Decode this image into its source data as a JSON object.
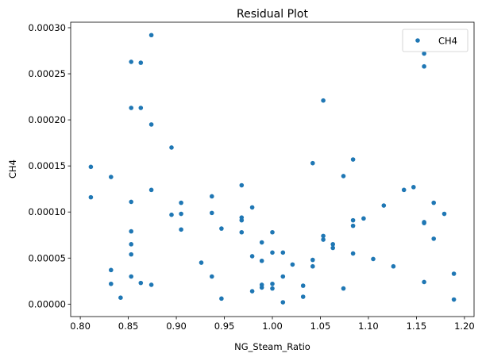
{
  "chart_data": {
    "type": "scatter",
    "title": "Residual Plot",
    "xlabel": "NG_Steam_Ratio",
    "ylabel": "CH4",
    "xlim": [
      0.79,
      1.21
    ],
    "ylim": [
      -1.35e-05,
      0.000306
    ],
    "xticks": [
      0.8,
      0.85,
      0.9,
      0.95,
      1.0,
      1.05,
      1.1,
      1.15,
      1.2
    ],
    "xtick_labels": [
      "0.80",
      "0.85",
      "0.90",
      "0.95",
      "1.00",
      "1.05",
      "1.10",
      "1.15",
      "1.20"
    ],
    "yticks": [
      0,
      5e-05,
      0.0001,
      0.00015,
      0.0002,
      0.00025,
      0.0003
    ],
    "ytick_labels": [
      "0.00000",
      "0.00005",
      "0.00010",
      "0.00015",
      "0.00020",
      "0.00025",
      "0.00030"
    ],
    "grid": false,
    "legend_position": "top-right",
    "series": [
      {
        "name": "CH4",
        "color": "#1f77b4",
        "x": [
          0.811,
          0.811,
          0.832,
          0.832,
          0.832,
          0.842,
          0.853,
          0.853,
          0.853,
          0.853,
          0.853,
          0.853,
          0.853,
          0.863,
          0.863,
          0.863,
          0.874,
          0.874,
          0.874,
          0.874,
          0.895,
          0.895,
          0.905,
          0.905,
          0.905,
          0.926,
          0.937,
          0.937,
          0.937,
          0.947,
          0.947,
          0.968,
          0.968,
          0.968,
          0.968,
          0.979,
          0.979,
          0.979,
          0.989,
          0.989,
          0.989,
          0.989,
          1.0,
          1.0,
          1.0,
          1.0,
          1.011,
          1.011,
          1.011,
          1.021,
          1.032,
          1.032,
          1.042,
          1.042,
          1.042,
          1.053,
          1.053,
          1.053,
          1.063,
          1.063,
          1.074,
          1.074,
          1.084,
          1.084,
          1.084,
          1.084,
          1.095,
          1.105,
          1.116,
          1.126,
          1.137,
          1.147,
          1.158,
          1.158,
          1.158,
          1.158,
          1.158,
          1.168,
          1.168,
          1.179,
          1.189,
          1.189
        ],
        "y": [
          0.000149,
          0.000116,
          0.000138,
          3.7e-05,
          2.2e-05,
          7e-06,
          0.000263,
          0.000111,
          7.9e-05,
          6.5e-05,
          5.4e-05,
          3e-05,
          0.000213,
          0.000262,
          0.000213,
          2.3e-05,
          0.000292,
          0.000195,
          0.000124,
          2.1e-05,
          0.00017,
          9.7e-05,
          0.00011,
          9.8e-05,
          8.1e-05,
          4.5e-05,
          0.000117,
          9.9e-05,
          3e-05,
          8.2e-05,
          6e-06,
          0.000129,
          9.4e-05,
          9.1e-05,
          7.8e-05,
          0.000105,
          5.2e-05,
          1.4e-05,
          6.7e-05,
          4.7e-05,
          2.1e-05,
          1.8e-05,
          7.8e-05,
          2.2e-05,
          1.7e-05,
          5.6e-05,
          3e-05,
          2e-06,
          5.6e-05,
          4.3e-05,
          2e-05,
          8e-06,
          0.000153,
          4.8e-05,
          4.1e-05,
          0.000221,
          7.4e-05,
          7e-05,
          6.5e-05,
          6.1e-05,
          0.000139,
          1.7e-05,
          0.000157,
          9.1e-05,
          8.5e-05,
          5.5e-05,
          9.3e-05,
          4.9e-05,
          0.000107,
          4.1e-05,
          0.000124,
          0.000127,
          0.000272,
          0.000258,
          8.9e-05,
          8.8e-05,
          2.4e-05,
          0.00011,
          7.1e-05,
          9.8e-05,
          3.3e-05,
          5e-06
        ]
      }
    ]
  }
}
